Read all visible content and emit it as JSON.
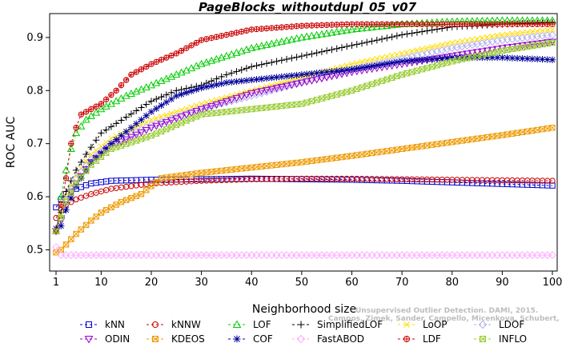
{
  "chart_data": {
    "type": "line",
    "title": "PageBlocks_withoutdupl_05_v07",
    "xlabel": "Neighborhood size",
    "ylabel": "ROC AUC",
    "xlim": [
      1,
      100
    ],
    "ylim": [
      0.46,
      0.945
    ],
    "xticks": [
      1,
      10,
      20,
      30,
      40,
      50,
      60,
      70,
      80,
      90,
      100
    ],
    "yticks": [
      0.5,
      0.6,
      0.7,
      0.8,
      0.9
    ],
    "legend_position": "bottom",
    "series": [
      {
        "name": "kNN",
        "color": "#0000cc",
        "marker": "square",
        "dash": "3,3",
        "points": [
          [
            1,
            0.58
          ],
          [
            2,
            0.595
          ],
          [
            3,
            0.605
          ],
          [
            5,
            0.615
          ],
          [
            8,
            0.625
          ],
          [
            12,
            0.63
          ],
          [
            20,
            0.632
          ],
          [
            30,
            0.633
          ],
          [
            40,
            0.634
          ],
          [
            50,
            0.633
          ],
          [
            60,
            0.632
          ],
          [
            70,
            0.63
          ],
          [
            80,
            0.627
          ],
          [
            90,
            0.624
          ],
          [
            100,
            0.621
          ]
        ]
      },
      {
        "name": "kNNW",
        "color": "#cc0000",
        "marker": "circle",
        "dash": "3,3",
        "points": [
          [
            1,
            0.56
          ],
          [
            2,
            0.575
          ],
          [
            3,
            0.585
          ],
          [
            5,
            0.595
          ],
          [
            8,
            0.605
          ],
          [
            12,
            0.615
          ],
          [
            16,
            0.62
          ],
          [
            20,
            0.625
          ],
          [
            30,
            0.63
          ],
          [
            40,
            0.633
          ],
          [
            50,
            0.634
          ],
          [
            60,
            0.634
          ],
          [
            70,
            0.633
          ],
          [
            80,
            0.632
          ],
          [
            90,
            0.631
          ],
          [
            100,
            0.63
          ]
        ]
      },
      {
        "name": "LOF",
        "color": "#00cc00",
        "marker": "triangle-up",
        "dash": "3,3",
        "points": [
          [
            1,
            0.535
          ],
          [
            2,
            0.6
          ],
          [
            3,
            0.65
          ],
          [
            4,
            0.69
          ],
          [
            5,
            0.72
          ],
          [
            7,
            0.745
          ],
          [
            10,
            0.765
          ],
          [
            15,
            0.79
          ],
          [
            20,
            0.81
          ],
          [
            25,
            0.83
          ],
          [
            30,
            0.85
          ],
          [
            35,
            0.865
          ],
          [
            40,
            0.88
          ],
          [
            50,
            0.9
          ],
          [
            60,
            0.915
          ],
          [
            70,
            0.925
          ],
          [
            80,
            0.93
          ],
          [
            90,
            0.932
          ],
          [
            100,
            0.932
          ]
        ]
      },
      {
        "name": "SimplifiedLOF",
        "color": "#000000",
        "marker": "plus",
        "dash": "3,3",
        "points": [
          [
            1,
            0.54
          ],
          [
            2,
            0.57
          ],
          [
            3,
            0.61
          ],
          [
            5,
            0.65
          ],
          [
            7,
            0.68
          ],
          [
            10,
            0.72
          ],
          [
            15,
            0.75
          ],
          [
            20,
            0.78
          ],
          [
            25,
            0.8
          ],
          [
            30,
            0.81
          ],
          [
            35,
            0.83
          ],
          [
            40,
            0.845
          ],
          [
            50,
            0.865
          ],
          [
            60,
            0.885
          ],
          [
            70,
            0.905
          ],
          [
            80,
            0.92
          ],
          [
            90,
            0.925
          ],
          [
            100,
            0.928
          ]
        ]
      },
      {
        "name": "LoOP",
        "color": "#ffdd00",
        "marker": "cross",
        "dash": "3,3",
        "points": [
          [
            1,
            0.535
          ],
          [
            2,
            0.565
          ],
          [
            3,
            0.6
          ],
          [
            5,
            0.64
          ],
          [
            8,
            0.68
          ],
          [
            12,
            0.71
          ],
          [
            20,
            0.745
          ],
          [
            30,
            0.775
          ],
          [
            40,
            0.8
          ],
          [
            50,
            0.825
          ],
          [
            60,
            0.85
          ],
          [
            70,
            0.87
          ],
          [
            80,
            0.89
          ],
          [
            90,
            0.905
          ],
          [
            100,
            0.915
          ]
        ]
      },
      {
        "name": "LDOF",
        "color": "#b0b0ee",
        "marker": "diamond",
        "dash": "3,3",
        "points": [
          [
            1,
            0.535
          ],
          [
            2,
            0.56
          ],
          [
            3,
            0.595
          ],
          [
            5,
            0.635
          ],
          [
            8,
            0.67
          ],
          [
            12,
            0.7
          ],
          [
            20,
            0.735
          ],
          [
            30,
            0.765
          ],
          [
            40,
            0.79
          ],
          [
            50,
            0.815
          ],
          [
            60,
            0.84
          ],
          [
            70,
            0.86
          ],
          [
            80,
            0.88
          ],
          [
            90,
            0.895
          ],
          [
            100,
            0.905
          ]
        ]
      },
      {
        "name": "ODIN",
        "color": "#9900cc",
        "marker": "triangle-down",
        "dash": "3,3",
        "points": [
          [
            1,
            0.535
          ],
          [
            2,
            0.555
          ],
          [
            3,
            0.59
          ],
          [
            5,
            0.625
          ],
          [
            8,
            0.665
          ],
          [
            12,
            0.695
          ],
          [
            20,
            0.73
          ],
          [
            30,
            0.765
          ],
          [
            40,
            0.795
          ],
          [
            50,
            0.815
          ],
          [
            60,
            0.835
          ],
          [
            70,
            0.85
          ],
          [
            80,
            0.865
          ],
          [
            90,
            0.88
          ],
          [
            100,
            0.892
          ]
        ]
      },
      {
        "name": "KDEOS",
        "color": "#ee9900",
        "marker": "square-x",
        "dash": "3,3",
        "points": [
          [
            1,
            0.495
          ],
          [
            2,
            0.5
          ],
          [
            3,
            0.51
          ],
          [
            5,
            0.53
          ],
          [
            8,
            0.555
          ],
          [
            10,
            0.57
          ],
          [
            14,
            0.59
          ],
          [
            18,
            0.605
          ],
          [
            22,
            0.635
          ],
          [
            30,
            0.645
          ],
          [
            40,
            0.655
          ],
          [
            50,
            0.665
          ],
          [
            60,
            0.677
          ],
          [
            70,
            0.69
          ],
          [
            80,
            0.703
          ],
          [
            90,
            0.716
          ],
          [
            100,
            0.73
          ]
        ]
      },
      {
        "name": "COF",
        "color": "#000099",
        "marker": "asterisk",
        "dash": "3,3",
        "points": [
          [
            1,
            0.54
          ],
          [
            2,
            0.545
          ],
          [
            3,
            0.575
          ],
          [
            5,
            0.62
          ],
          [
            8,
            0.665
          ],
          [
            12,
            0.7
          ],
          [
            16,
            0.73
          ],
          [
            20,
            0.76
          ],
          [
            25,
            0.79
          ],
          [
            30,
            0.805
          ],
          [
            35,
            0.815
          ],
          [
            40,
            0.82
          ],
          [
            50,
            0.83
          ],
          [
            60,
            0.84
          ],
          [
            70,
            0.855
          ],
          [
            80,
            0.862
          ],
          [
            90,
            0.862
          ],
          [
            100,
            0.858
          ]
        ]
      },
      {
        "name": "FastABOD",
        "color": "#ffaaff",
        "marker": "diamond",
        "dash": "3,3",
        "points": [
          [
            1,
            0.505
          ],
          [
            2,
            0.49
          ],
          [
            5,
            0.49
          ],
          [
            10,
            0.49
          ],
          [
            20,
            0.49
          ],
          [
            30,
            0.49
          ],
          [
            40,
            0.49
          ],
          [
            50,
            0.49
          ],
          [
            60,
            0.49
          ],
          [
            70,
            0.49
          ],
          [
            80,
            0.49
          ],
          [
            90,
            0.49
          ],
          [
            100,
            0.49
          ]
        ]
      },
      {
        "name": "LDF",
        "color": "#cc0000",
        "marker": "circle-plus",
        "dash": "3,3",
        "points": [
          [
            1,
            0.535
          ],
          [
            2,
            0.585
          ],
          [
            3,
            0.635
          ],
          [
            4,
            0.7
          ],
          [
            5,
            0.73
          ],
          [
            6,
            0.755
          ],
          [
            8,
            0.765
          ],
          [
            10,
            0.775
          ],
          [
            13,
            0.8
          ],
          [
            16,
            0.83
          ],
          [
            20,
            0.85
          ],
          [
            25,
            0.87
          ],
          [
            30,
            0.895
          ],
          [
            35,
            0.905
          ],
          [
            40,
            0.915
          ],
          [
            50,
            0.922
          ],
          [
            60,
            0.925
          ],
          [
            70,
            0.925
          ],
          [
            80,
            0.925
          ],
          [
            90,
            0.925
          ],
          [
            100,
            0.925
          ]
        ]
      },
      {
        "name": "INFLO",
        "color": "#99cc33",
        "marker": "hourglass",
        "dash": "3,3",
        "points": [
          [
            1,
            0.535
          ],
          [
            2,
            0.56
          ],
          [
            3,
            0.59
          ],
          [
            5,
            0.625
          ],
          [
            8,
            0.66
          ],
          [
            12,
            0.69
          ],
          [
            20,
            0.715
          ],
          [
            25,
            0.735
          ],
          [
            30,
            0.755
          ],
          [
            40,
            0.765
          ],
          [
            50,
            0.775
          ],
          [
            60,
            0.8
          ],
          [
            70,
            0.83
          ],
          [
            80,
            0.855
          ],
          [
            90,
            0.875
          ],
          [
            100,
            0.89
          ]
        ]
      }
    ]
  },
  "watermark": {
    "line1": "Unsupervised Outlier Detection. DAMI, 2015.",
    "line2": "Campos, Zimek, Sander, Campello, Micenkova, Schubert, Assent, Houle"
  }
}
